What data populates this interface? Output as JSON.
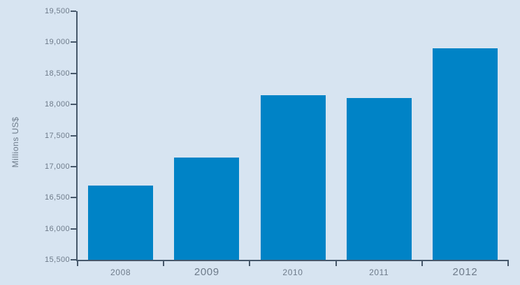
{
  "chart_data": {
    "type": "bar",
    "categories": [
      "2008",
      "2009",
      "2010",
      "2011",
      "2012"
    ],
    "values": [
      16700,
      17150,
      18150,
      18100,
      18900
    ],
    "ylabel": "Millions US$",
    "ylim": [
      15500,
      19500
    ],
    "ytick_step": 500,
    "ytick_labels": [
      "19,500",
      "19,000",
      "18,500",
      "18,000",
      "17,500",
      "17,000",
      "16,500",
      "16,000",
      "15,500"
    ],
    "grid": false,
    "legend": "none",
    "colors": {
      "bar": "#0083C6",
      "background": "#D7E4F1",
      "axis": "#47586B",
      "text": "#6E7B8A"
    }
  }
}
